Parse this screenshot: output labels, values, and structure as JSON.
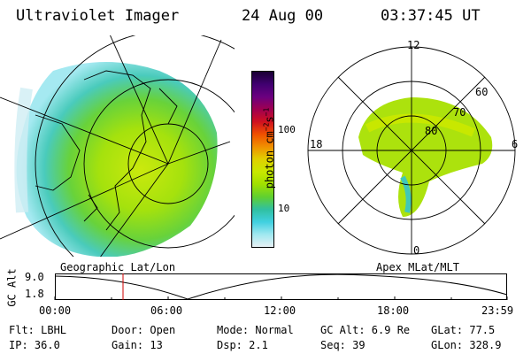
{
  "header": {
    "instrument": "Ultraviolet Imager",
    "date": "24 Aug 00",
    "time": "03:37:45 UT"
  },
  "colorbar": {
    "unit": "photon cm",
    "unit_exp1": "−2",
    "unit_s": "s",
    "unit_exp2": "−1",
    "tick_labels": [
      "100",
      "10"
    ],
    "colors": [
      "#1a0033",
      "#400070",
      "#6a0080",
      "#a00050",
      "#d01020",
      "#f05000",
      "#f09000",
      "#e0d000",
      "#c8e800",
      "#a0e000",
      "#60d030",
      "#30c0a0",
      "#40d0e0",
      "#a0e8f0",
      "#e6f0f4"
    ]
  },
  "geo_panel": {
    "label": "Geographic Lat/Lon"
  },
  "polar_panel": {
    "label": "Apex MLat/MLT",
    "mlt_labels": {
      "top": "12",
      "left": "18",
      "right": "6",
      "bottom": "0"
    },
    "lat_labels": [
      "60",
      "70",
      "80"
    ]
  },
  "timeline": {
    "ylabel": "GC Alt",
    "y_ticks": [
      "9.0",
      "1.8"
    ],
    "x_ticks": [
      "00:00",
      "06:00",
      "12:00",
      "18:00",
      "23:59"
    ],
    "marker_time": "03:37"
  },
  "status": {
    "flt": "Flt: LBHL",
    "ip": "IP: 36.0",
    "door": "Door: Open",
    "gain": "Gain: 13",
    "mode": "Mode: Normal",
    "dsp": "Dsp:    2.1",
    "gc_alt": "GC Alt: 6.9 Re",
    "seq": "Seq: 39",
    "glat": "GLat:  77.5",
    "glon": "GLon: 328.9"
  }
}
